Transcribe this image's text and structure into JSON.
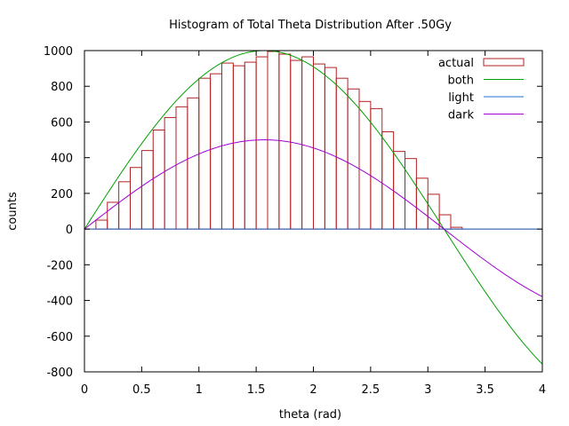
{
  "chart_data": {
    "type": "bar",
    "title": "Histogram of Total Theta Distribution After .50Gy",
    "xlabel": "theta (rad)",
    "ylabel": "counts",
    "xlim": [
      0,
      4
    ],
    "ylim": [
      -800,
      1000
    ],
    "xticks": [
      0,
      0.5,
      1,
      1.5,
      2,
      2.5,
      3,
      3.5,
      4
    ],
    "xtick_labels": [
      "0",
      "0.5",
      "1",
      "1.5",
      "2",
      "2.5",
      "3",
      "3.5",
      "4"
    ],
    "yticks": [
      -800,
      -600,
      -400,
      -200,
      0,
      200,
      400,
      600,
      800,
      1000
    ],
    "ytick_labels": [
      "-800",
      "-600",
      "-400",
      "-200",
      "0",
      "200",
      "400",
      "600",
      "800",
      "1000"
    ],
    "grid": false,
    "legend_position": "top-right",
    "bin_width": 0.1,
    "bins": [
      {
        "x": 0.0,
        "count": 0
      },
      {
        "x": 0.1,
        "count": 50
      },
      {
        "x": 0.2,
        "count": 150
      },
      {
        "x": 0.3,
        "count": 265
      },
      {
        "x": 0.4,
        "count": 345
      },
      {
        "x": 0.5,
        "count": 440
      },
      {
        "x": 0.6,
        "count": 555
      },
      {
        "x": 0.7,
        "count": 625
      },
      {
        "x": 0.8,
        "count": 685
      },
      {
        "x": 0.9,
        "count": 735
      },
      {
        "x": 1.0,
        "count": 845
      },
      {
        "x": 1.1,
        "count": 870
      },
      {
        "x": 1.2,
        "count": 930
      },
      {
        "x": 1.3,
        "count": 915
      },
      {
        "x": 1.4,
        "count": 935
      },
      {
        "x": 1.5,
        "count": 965
      },
      {
        "x": 1.6,
        "count": 995
      },
      {
        "x": 1.7,
        "count": 980
      },
      {
        "x": 1.8,
        "count": 945
      },
      {
        "x": 1.9,
        "count": 965
      },
      {
        "x": 2.0,
        "count": 925
      },
      {
        "x": 2.1,
        "count": 905
      },
      {
        "x": 2.2,
        "count": 845
      },
      {
        "x": 2.3,
        "count": 785
      },
      {
        "x": 2.4,
        "count": 715
      },
      {
        "x": 2.5,
        "count": 675
      },
      {
        "x": 2.6,
        "count": 545
      },
      {
        "x": 2.7,
        "count": 435
      },
      {
        "x": 2.8,
        "count": 395
      },
      {
        "x": 2.9,
        "count": 285
      },
      {
        "x": 3.0,
        "count": 195
      },
      {
        "x": 3.1,
        "count": 80
      },
      {
        "x": 3.2,
        "count": 10
      },
      {
        "x": 3.3,
        "count": 0
      }
    ],
    "series": [
      {
        "name": "actual",
        "kind": "histogram",
        "color": "#b22222"
      },
      {
        "name": "both",
        "kind": "function",
        "color": "#00a000",
        "amplitude": 1000,
        "formula": "1000*sin(x)"
      },
      {
        "name": "light",
        "kind": "function",
        "color": "#1f6fd1",
        "amplitude": 0,
        "formula": "0*sin(x)"
      },
      {
        "name": "dark",
        "kind": "function",
        "color": "#a000d0",
        "amplitude": 500,
        "formula": "500*sin(x)"
      }
    ]
  }
}
